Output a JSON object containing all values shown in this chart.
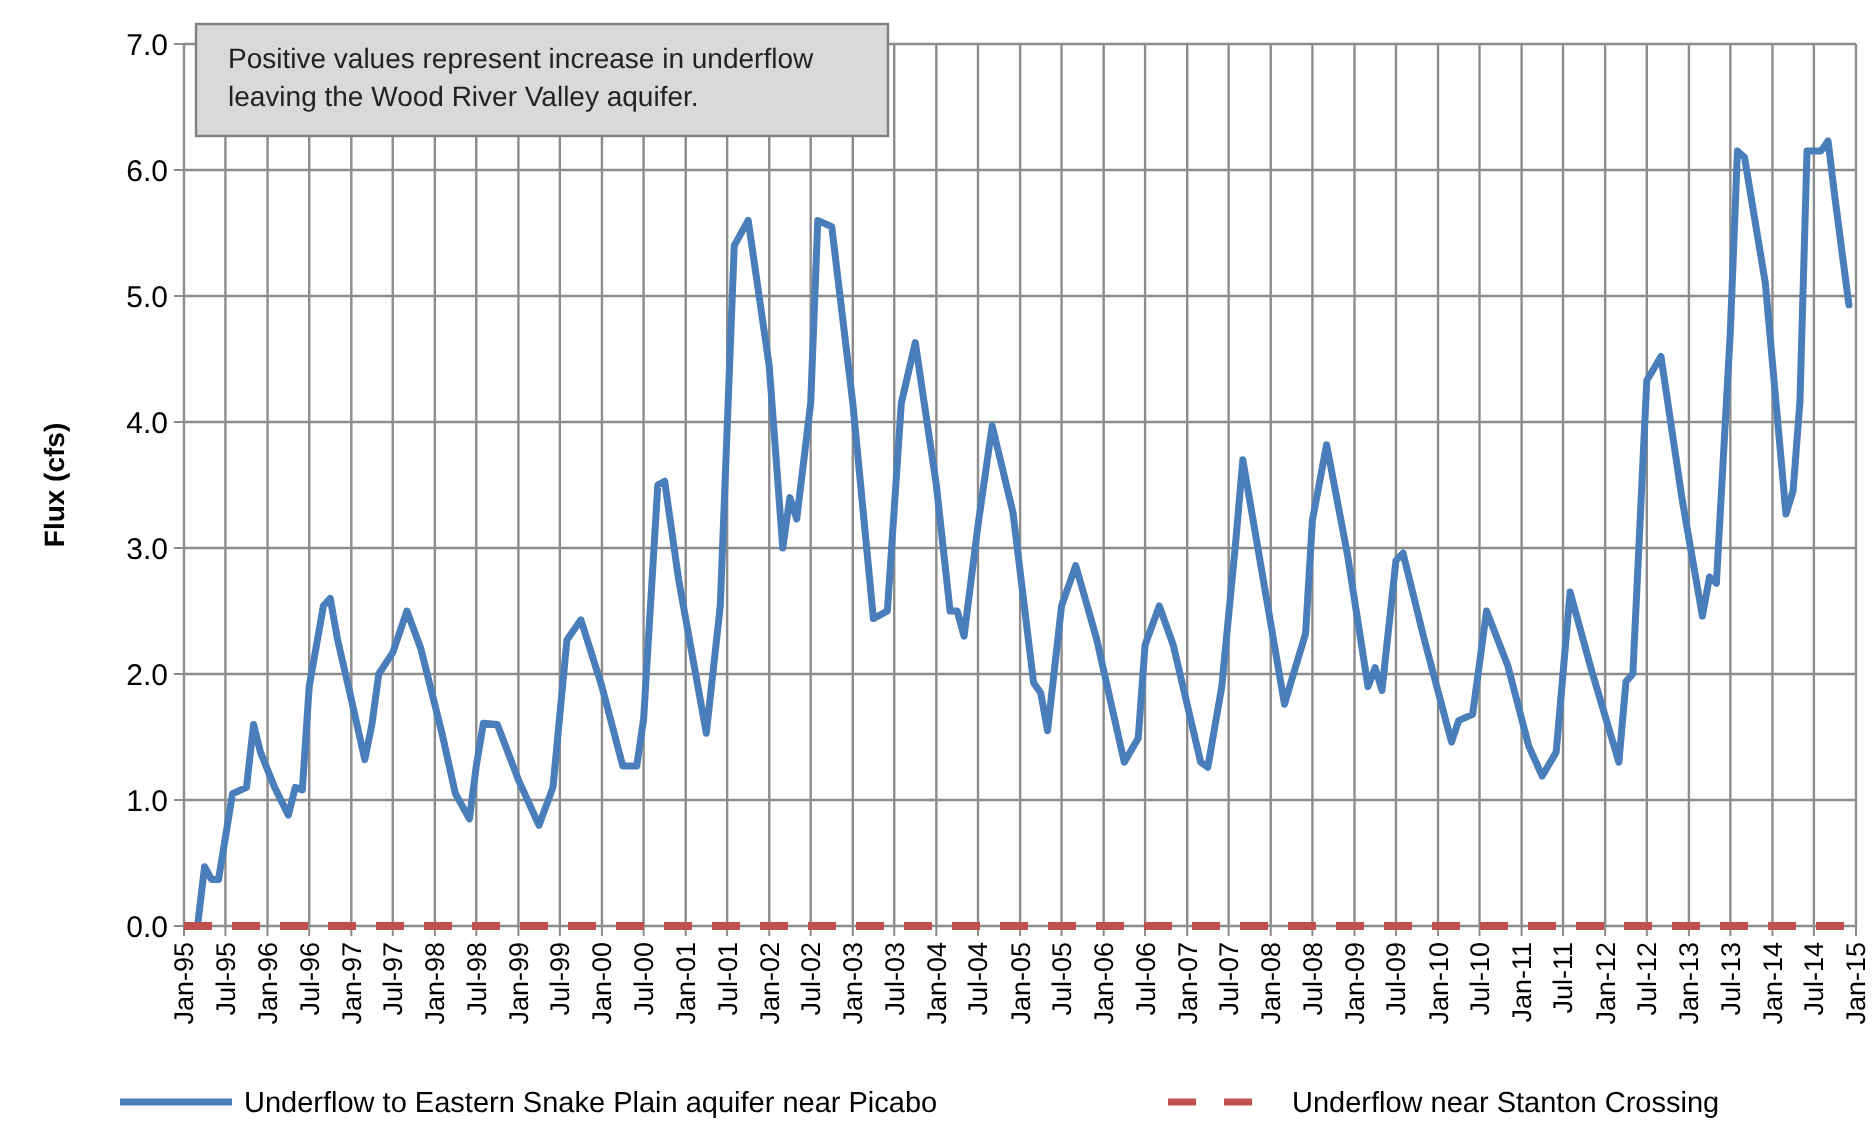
{
  "chart_data": {
    "type": "line",
    "ylabel": "Flux (cfs)",
    "annotations": [
      "Positive values represent increase in underflow leaving the Wood River Valley aquifer."
    ],
    "xlim": [
      "1995-01",
      "2015-01"
    ],
    "xticks": [
      {
        "value": "1995-01",
        "label": "Jan-95"
      },
      {
        "value": "1995-07",
        "label": "Jul-95"
      },
      {
        "value": "1996-01",
        "label": "Jan-96"
      },
      {
        "value": "1996-07",
        "label": "Jul-96"
      },
      {
        "value": "1997-01",
        "label": "Jan-97"
      },
      {
        "value": "1997-07",
        "label": "Jul-97"
      },
      {
        "value": "1998-01",
        "label": "Jan-98"
      },
      {
        "value": "1998-07",
        "label": "Jul-98"
      },
      {
        "value": "1999-01",
        "label": "Jan-99"
      },
      {
        "value": "1999-07",
        "label": "Jul-99"
      },
      {
        "value": "2000-01",
        "label": "Jan-00"
      },
      {
        "value": "2000-07",
        "label": "Jul-00"
      },
      {
        "value": "2001-01",
        "label": "Jan-01"
      },
      {
        "value": "2001-07",
        "label": "Jul-01"
      },
      {
        "value": "2002-01",
        "label": "Jan-02"
      },
      {
        "value": "2002-07",
        "label": "Jul-02"
      },
      {
        "value": "2003-01",
        "label": "Jan-03"
      },
      {
        "value": "2003-07",
        "label": "Jul-03"
      },
      {
        "value": "2004-01",
        "label": "Jan-04"
      },
      {
        "value": "2004-07",
        "label": "Jul-04"
      },
      {
        "value": "2005-01",
        "label": "Jan-05"
      },
      {
        "value": "2005-07",
        "label": "Jul-05"
      },
      {
        "value": "2006-01",
        "label": "Jan-06"
      },
      {
        "value": "2006-07",
        "label": "Jul-06"
      },
      {
        "value": "2007-01",
        "label": "Jan-07"
      },
      {
        "value": "2007-07",
        "label": "Jul-07"
      },
      {
        "value": "2008-01",
        "label": "Jan-08"
      },
      {
        "value": "2008-07",
        "label": "Jul-08"
      },
      {
        "value": "2009-01",
        "label": "Jan-09"
      },
      {
        "value": "2009-07",
        "label": "Jul-09"
      },
      {
        "value": "2010-01",
        "label": "Jan-10"
      },
      {
        "value": "2010-07",
        "label": "Jul-10"
      },
      {
        "value": "2011-01",
        "label": "Jan-11"
      },
      {
        "value": "2011-07",
        "label": "Jul-11"
      },
      {
        "value": "2012-01",
        "label": "Jan-12"
      },
      {
        "value": "2012-07",
        "label": "Jul-12"
      },
      {
        "value": "2013-01",
        "label": "Jan-13"
      },
      {
        "value": "2013-07",
        "label": "Jul-13"
      },
      {
        "value": "2014-01",
        "label": "Jan-14"
      },
      {
        "value": "2014-07",
        "label": "Jul-14"
      },
      {
        "value": "2015-01",
        "label": "Jan-15"
      }
    ],
    "ylim": [
      0,
      7
    ],
    "yticks": [
      {
        "value": 0,
        "label": "0.0"
      },
      {
        "value": 1,
        "label": "1.0"
      },
      {
        "value": 2,
        "label": "2.0"
      },
      {
        "value": 3,
        "label": "3.0"
      },
      {
        "value": 4,
        "label": "4.0"
      },
      {
        "value": 5,
        "label": "5.0"
      },
      {
        "value": 6,
        "label": "6.0"
      },
      {
        "value": 7,
        "label": "7.0"
      }
    ],
    "grid": true,
    "legend": "bottom",
    "marker": "none",
    "series": [
      {
        "name": "Underflow to Eastern Snake Plain aquifer near Picabo",
        "color": "#4a7ebb",
        "line_style": "solid",
        "x": [
          "1995-03",
          "1995-04",
          "1995-05",
          "1995-06",
          "1995-08",
          "1995-10",
          "1995-11",
          "1995-12",
          "1996-02",
          "1996-04",
          "1996-05",
          "1996-06",
          "1996-07",
          "1996-09",
          "1996-10",
          "1996-11",
          "1997-01",
          "1997-03",
          "1997-04",
          "1997-05",
          "1997-07",
          "1997-09",
          "1997-11",
          "1998-02",
          "1998-04",
          "1998-06",
          "1998-07",
          "1998-08",
          "1998-10",
          "1999-01",
          "1999-04",
          "1999-06",
          "1999-08",
          "1999-10",
          "2000-01",
          "2000-04",
          "2000-06",
          "2000-07",
          "2000-09",
          "2000-10",
          "2000-12",
          "2001-04",
          "2001-06",
          "2001-08",
          "2001-10",
          "2002-01",
          "2002-03",
          "2002-04",
          "2002-05",
          "2002-07",
          "2002-08",
          "2002-10",
          "2003-01",
          "2003-04",
          "2003-06",
          "2003-08",
          "2003-10",
          "2004-01",
          "2004-03",
          "2004-04",
          "2004-05",
          "2004-07",
          "2004-09",
          "2004-12",
          "2005-03",
          "2005-04",
          "2005-05",
          "2005-07",
          "2005-09",
          "2005-12",
          "2006-04",
          "2006-06",
          "2006-07",
          "2006-09",
          "2006-11",
          "2007-03",
          "2007-04",
          "2007-06",
          "2007-08",
          "2007-09",
          "2007-11",
          "2008-03",
          "2008-04",
          "2008-06",
          "2008-07",
          "2008-09",
          "2008-12",
          "2009-03",
          "2009-04",
          "2009-05",
          "2009-07",
          "2009-08",
          "2009-11",
          "2010-03",
          "2010-04",
          "2010-06",
          "2010-08",
          "2010-11",
          "2011-02",
          "2011-04",
          "2011-06",
          "2011-08",
          "2011-11",
          "2012-03",
          "2012-04",
          "2012-05",
          "2012-07",
          "2012-09",
          "2012-12",
          "2013-03",
          "2013-04",
          "2013-05",
          "2013-07",
          "2013-08",
          "2013-09",
          "2013-12",
          "2014-03",
          "2014-04",
          "2014-05",
          "2014-06",
          "2014-08",
          "2014-09",
          "2014-10",
          "2014-12"
        ],
        "values": [
          0,
          0.47,
          0.37,
          0.37,
          1.05,
          1.1,
          1.6,
          1.38,
          1.1,
          0.88,
          1.1,
          1.08,
          1.9,
          2.54,
          2.6,
          2.28,
          1.8,
          1.32,
          1.6,
          2.0,
          2.17,
          2.5,
          2.2,
          1.53,
          1.05,
          0.85,
          1.27,
          1.61,
          1.6,
          1.16,
          0.8,
          1.1,
          2.27,
          2.43,
          1.9,
          1.27,
          1.27,
          1.64,
          3.5,
          3.53,
          2.75,
          1.53,
          2.54,
          5.4,
          5.6,
          4.44,
          3.0,
          3.4,
          3.23,
          4.15,
          5.6,
          5.55,
          4.15,
          2.44,
          2.5,
          4.15,
          4.63,
          3.5,
          2.5,
          2.5,
          2.3,
          3.18,
          3.97,
          3.28,
          1.93,
          1.85,
          1.55,
          2.54,
          2.86,
          2.28,
          1.3,
          1.49,
          2.23,
          2.54,
          2.23,
          1.3,
          1.26,
          1.9,
          3.05,
          3.7,
          3.05,
          1.76,
          1.95,
          2.32,
          3.22,
          3.82,
          2.95,
          1.9,
          2.05,
          1.87,
          2.9,
          2.96,
          2.28,
          1.46,
          1.63,
          1.68,
          2.5,
          2.07,
          1.43,
          1.19,
          1.38,
          2.65,
          2.04,
          1.3,
          1.94,
          2.0,
          4.33,
          4.52,
          3.4,
          2.46,
          2.77,
          2.72,
          4.72,
          6.15,
          6.1,
          5.1,
          3.27,
          3.45,
          4.16,
          6.15,
          6.15,
          6.23,
          5.78,
          4.93
        ]
      },
      {
        "name": "Underflow near Stanton Crossing",
        "color": "#c0504d",
        "line_style": "dashed",
        "x": [
          "1995-01",
          "2014-12"
        ],
        "values": [
          0,
          0
        ]
      }
    ]
  }
}
